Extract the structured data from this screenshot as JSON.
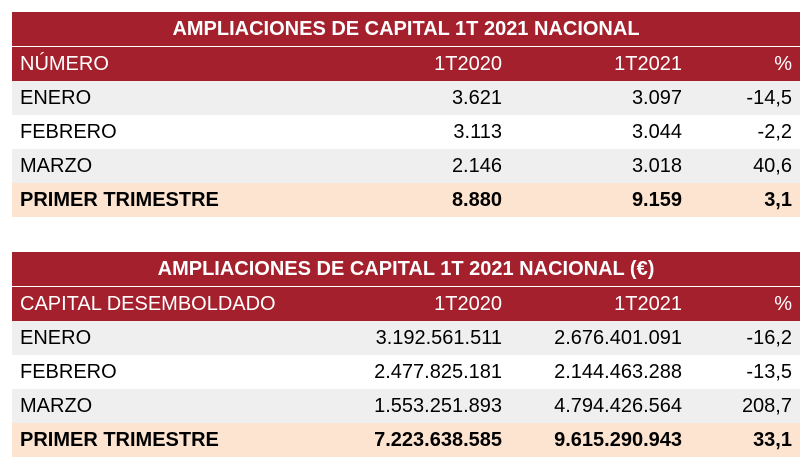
{
  "table1": {
    "title": "AMPLIACIONES DE CAPITAL 1T 2021 NACIONAL",
    "header": [
      "NÚMERO",
      "1T2020",
      "1T2021",
      "%"
    ],
    "rows": [
      [
        "ENERO",
        "3.621",
        "3.097",
        "-14,5"
      ],
      [
        "FEBRERO",
        "3.113",
        "3.044",
        "-2,2"
      ],
      [
        "MARZO",
        "2.146",
        "3.018",
        "40,6"
      ]
    ],
    "total": [
      "PRIMER TRIMESTRE",
      "8.880",
      "9.159",
      "3,1"
    ]
  },
  "table2": {
    "title": "AMPLIACIONES DE CAPITAL 1T 2021 NACIONAL (€)",
    "header": [
      "CAPITAL DESEMBOLDADO",
      "1T2020",
      "1T2021",
      "%"
    ],
    "rows": [
      [
        "ENERO",
        "3.192.561.511",
        "2.676.401.091",
        "-16,2"
      ],
      [
        "FEBRERO",
        "2.477.825.181",
        "2.144.463.288",
        "-13,5"
      ],
      [
        "MARZO",
        "1.553.251.893",
        "4.794.426.564",
        "208,7"
      ]
    ],
    "total": [
      "PRIMER TRIMESTRE",
      "7.223.638.585",
      "9.615.290.943",
      "33,1"
    ]
  },
  "colors": {
    "header_bg": "#a4202c",
    "header_text": "#ffffff",
    "alt_row_bg": "#efefef",
    "total_row_bg": "#fce4d0"
  }
}
